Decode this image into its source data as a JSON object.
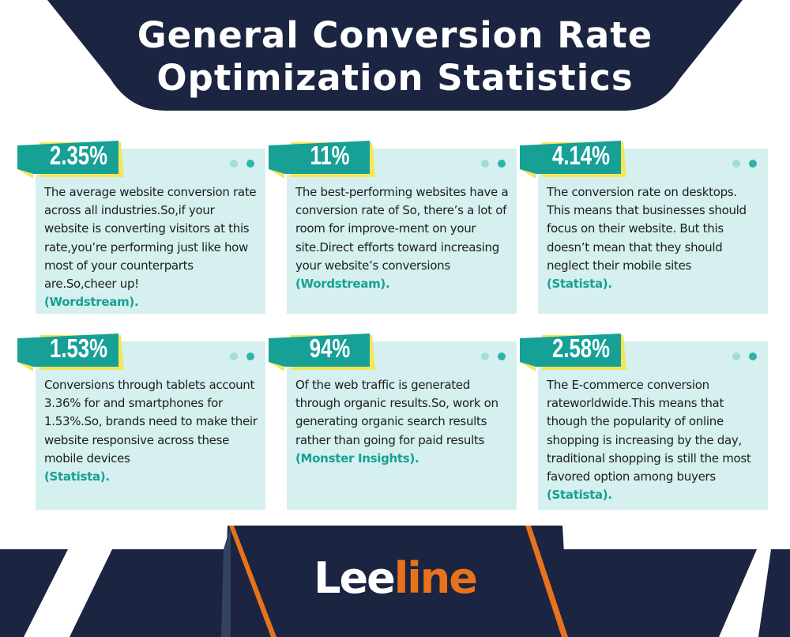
{
  "header": {
    "title_line1": "General Conversion Rate",
    "title_line2": "Optimization Statistics"
  },
  "colors": {
    "navy": "#1b2440",
    "teal": "#16a096",
    "card_bg": "#d5f0ee",
    "accent_yellow": "#f2e65a",
    "orange": "#e8731c"
  },
  "cards": [
    {
      "stat": "2.35%",
      "text": "The average website conversion rate across all industries.So,if your website is converting visitors at this rate,you’re performing just like how most of your counterparts are.So,cheer up!",
      "source": "(Wordstream)."
    },
    {
      "stat": "11%",
      "text": "The best-performing websites have a conversion rate of So, there’s a lot of room for improve-ment on your site.Direct efforts toward increasing your website’s conversions",
      "source": "(Wordstream)."
    },
    {
      "stat": "4.14%",
      "text": "The conversion rate on desktops. This means that businesses should focus on their website. But this doesn’t mean that they should neglect their mobile sites",
      "source": "(Statista)."
    },
    {
      "stat": "1.53%",
      "text": "Conversions through tablets account 3.36% for and smartphones for 1.53%.So, brands need to make their website responsive across these mobile devices",
      "source": "(Statista)."
    },
    {
      "stat": "94%",
      "text": "Of the web traffic is generated through organic results.So, work on generating organic search results rather than going for paid results",
      "source": "(Monster Insights)."
    },
    {
      "stat": "2.58%",
      "text": "The E-commerce conversion rateworldwide.This means that though the popularity of online shopping is increasing by the day, traditional shopping is still the most favored option among buyers",
      "source": "(Statista)."
    }
  ],
  "footer": {
    "logo_part1": "Lee",
    "logo_part2": "line"
  }
}
